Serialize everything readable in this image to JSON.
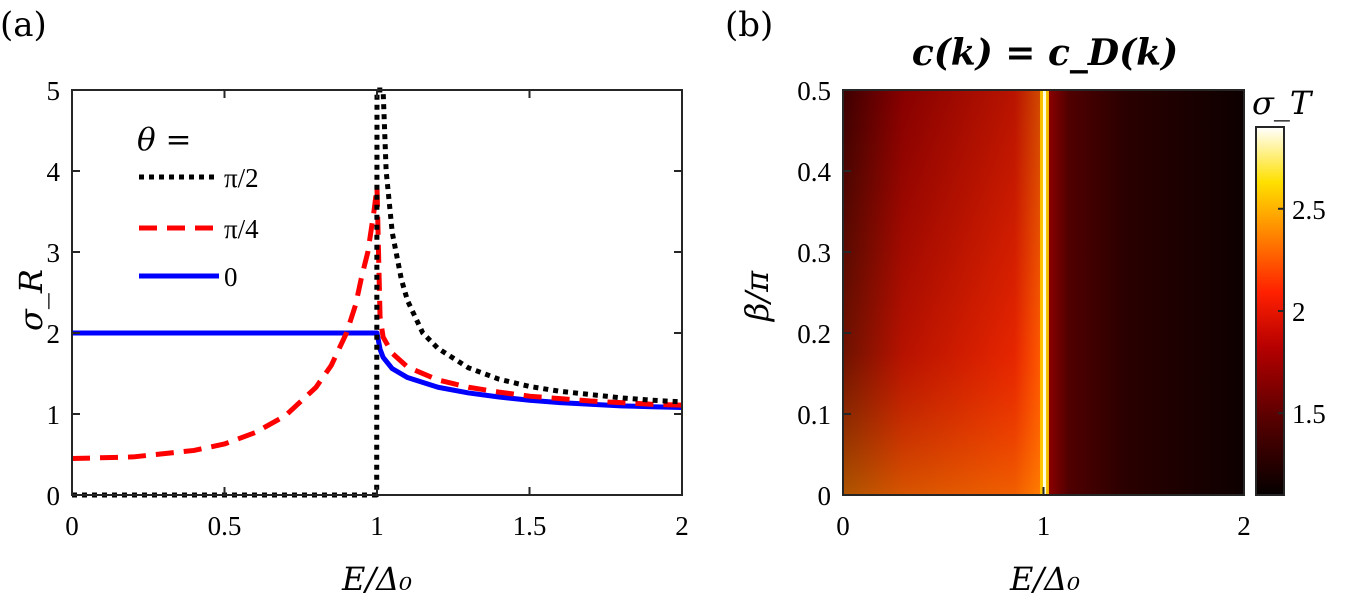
{
  "chart_data": [
    {
      "panel": "(a)",
      "type": "line",
      "xlabel": "E/Δ₀",
      "ylabel": "σ_R",
      "xlim": [
        0,
        2
      ],
      "ylim": [
        0,
        5
      ],
      "x_ticks": [
        "0",
        "0.5",
        "1",
        "1.5",
        "2"
      ],
      "y_ticks": [
        "0",
        "1",
        "2",
        "3",
        "4",
        "5"
      ],
      "legend_title": "θ =",
      "legend_position": "top-left",
      "series": [
        {
          "name": "π/2",
          "color": "#000000",
          "style": "dotted",
          "x": [
            0,
            0.999,
            1.0,
            1.02,
            1.03,
            1.05,
            1.08,
            1.1,
            1.15,
            1.2,
            1.3,
            1.4,
            1.5,
            1.6,
            1.7,
            1.8,
            1.9,
            2.0
          ],
          "y": [
            0,
            0,
            5.0,
            5.0,
            4.0,
            3.24,
            2.66,
            2.4,
            2.0,
            1.81,
            1.57,
            1.43,
            1.34,
            1.28,
            1.24,
            1.2,
            1.17,
            1.15
          ]
        },
        {
          "name": "π/4",
          "color": "#ff0000",
          "style": "dashed",
          "x": [
            0,
            0.2,
            0.4,
            0.5,
            0.6,
            0.7,
            0.8,
            0.85,
            0.9,
            0.93,
            0.95,
            0.97,
            0.98,
            0.99,
            1.0,
            1.01,
            1.02,
            1.05,
            1.1,
            1.2,
            1.3,
            1.4,
            1.5,
            1.6,
            1.7,
            1.8,
            1.9,
            2.0
          ],
          "y": [
            0.45,
            0.47,
            0.55,
            0.63,
            0.77,
            0.98,
            1.33,
            1.6,
            2.0,
            2.35,
            2.7,
            3.0,
            3.25,
            3.5,
            3.8,
            2.2,
            1.95,
            1.75,
            1.58,
            1.42,
            1.33,
            1.27,
            1.22,
            1.19,
            1.16,
            1.14,
            1.12,
            1.11
          ]
        },
        {
          "name": "0",
          "color": "#0000ff",
          "style": "solid",
          "x": [
            0,
            0.5,
            1.0,
            1.005,
            1.01,
            1.02,
            1.05,
            1.1,
            1.2,
            1.3,
            1.4,
            1.5,
            1.6,
            1.7,
            1.8,
            1.9,
            2.0
          ],
          "y": [
            2,
            2,
            2,
            1.9,
            1.8,
            1.7,
            1.56,
            1.45,
            1.33,
            1.26,
            1.21,
            1.17,
            1.14,
            1.12,
            1.1,
            1.09,
            1.08
          ]
        }
      ]
    },
    {
      "panel": "(b)",
      "type": "heatmap",
      "title": "c(k) = c_D(k)",
      "xlabel": "E/Δ₀",
      "ylabel": "β/π",
      "xlim": [
        0,
        2
      ],
      "ylim": [
        0,
        0.5
      ],
      "x_ticks": [
        "0",
        "1",
        "2"
      ],
      "y_ticks": [
        "0",
        "0.1",
        "0.2",
        "0.3",
        "0.4",
        "0.5"
      ],
      "colorbar_label": "σ_T",
      "colorbar_range": [
        1.1,
        2.9
      ],
      "colorbar_ticks": [
        "1.5",
        "2",
        "2.5"
      ],
      "colormap": "hot",
      "description_values": {
        "left_of_gap_bottom": 2.05,
        "left_of_gap_top": 1.55,
        "near_E_equals_1": 2.9,
        "right_of_gap_near": 1.35,
        "far_right": 1.12
      }
    }
  ]
}
